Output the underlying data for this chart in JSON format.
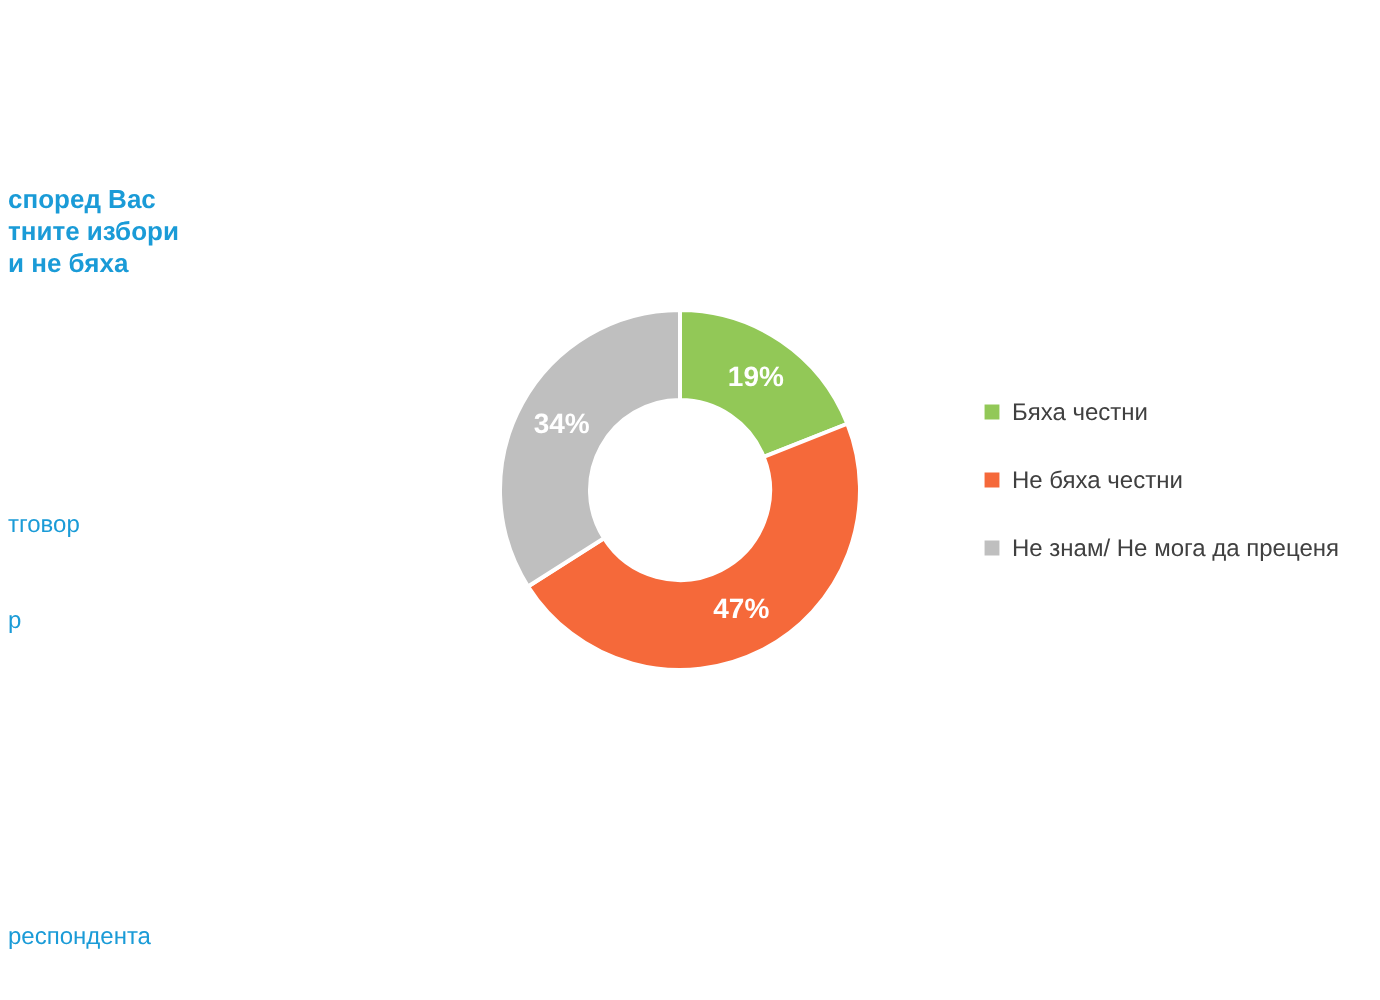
{
  "chart_data": {
    "type": "donut",
    "title": "според Вас\nтните избори\nи не бяха",
    "categories": [
      "Бяха честни",
      "Не бяха честни",
      "Не знам/ Не мога да преценя"
    ],
    "values": [
      19,
      47,
      34
    ],
    "colors": [
      "#92c857",
      "#f5693a",
      "#bfbfbf"
    ],
    "value_labels": [
      "19%",
      "47%",
      "34%"
    ],
    "legend": "right",
    "annotations": [
      "тговор",
      "р",
      "респондента"
    ]
  }
}
